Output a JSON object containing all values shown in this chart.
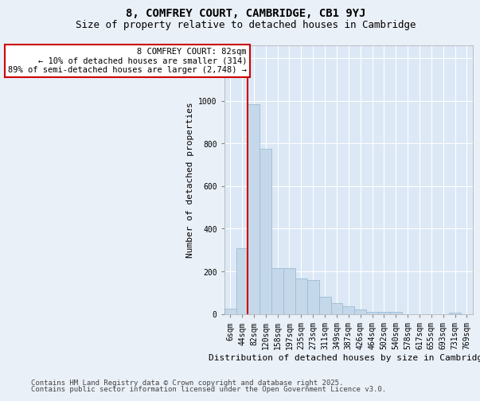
{
  "title_line1": "8, COMFREY COURT, CAMBRIDGE, CB1 9YJ",
  "title_line2": "Size of property relative to detached houses in Cambridge",
  "xlabel": "Distribution of detached houses by size in Cambridge",
  "ylabel": "Number of detached properties",
  "categories": [
    "6sqm",
    "44sqm",
    "82sqm",
    "120sqm",
    "158sqm",
    "197sqm",
    "235sqm",
    "273sqm",
    "311sqm",
    "349sqm",
    "387sqm",
    "426sqm",
    "464sqm",
    "502sqm",
    "540sqm",
    "578sqm",
    "617sqm",
    "655sqm",
    "693sqm",
    "731sqm",
    "769sqm"
  ],
  "values": [
    25,
    310,
    985,
    775,
    215,
    215,
    165,
    160,
    80,
    50,
    35,
    20,
    10,
    10,
    10,
    0,
    0,
    0,
    0,
    5,
    0
  ],
  "bar_color": "#c5d8ea",
  "bar_edge_color": "#9bbcd4",
  "vline_color": "#cc0000",
  "annotation_text": "8 COMFREY COURT: 82sqm\n← 10% of detached houses are smaller (314)\n89% of semi-detached houses are larger (2,748) →",
  "annotation_box_color": "#ffffff",
  "annotation_border_color": "#cc0000",
  "ylim": [
    0,
    1260
  ],
  "yticks": [
    0,
    200,
    400,
    600,
    800,
    1000,
    1200
  ],
  "plot_bg_color": "#dce8f5",
  "outer_bg_color": "#eaf0f8",
  "grid_color": "#ffffff",
  "footer_line1": "Contains HM Land Registry data © Crown copyright and database right 2025.",
  "footer_line2": "Contains public sector information licensed under the Open Government Licence v3.0.",
  "title_fontsize": 10,
  "subtitle_fontsize": 9,
  "axis_label_fontsize": 8,
  "tick_fontsize": 7,
  "annotation_fontsize": 7.5,
  "footer_fontsize": 6.5
}
